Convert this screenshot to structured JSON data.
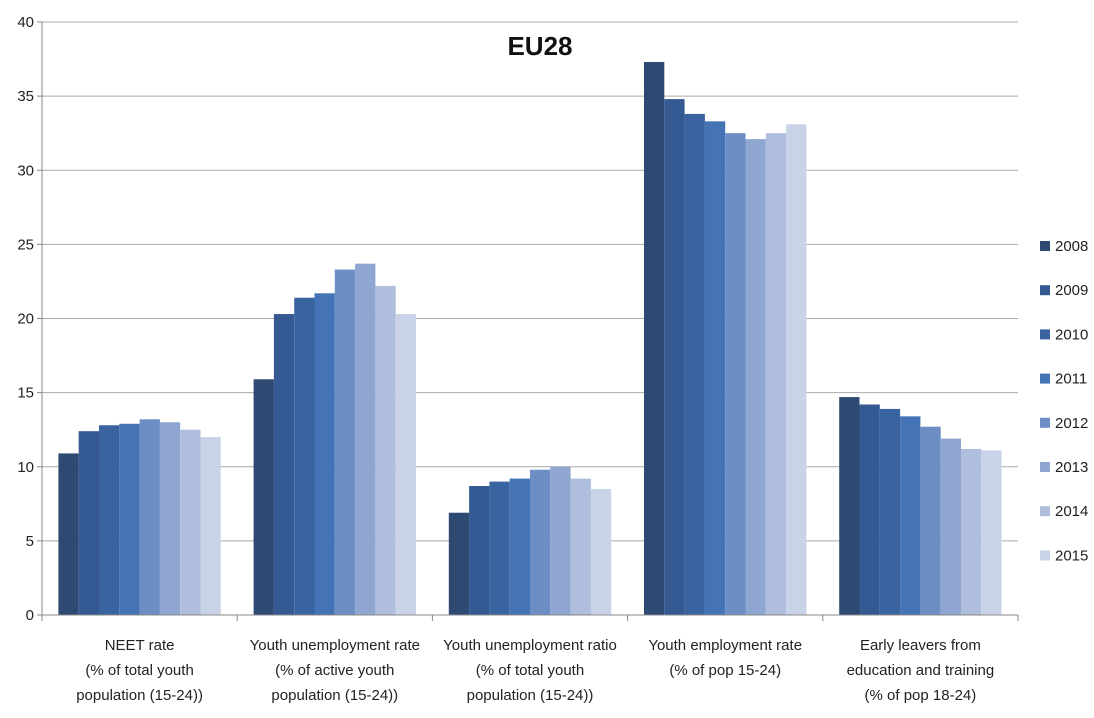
{
  "chart_data": {
    "type": "bar",
    "title": "EU28",
    "xlabel": "",
    "ylabel": "",
    "ylim": [
      0,
      40
    ],
    "yticks": [
      0,
      5,
      10,
      15,
      20,
      25,
      30,
      35,
      40
    ],
    "grid": true,
    "legend_position": "right",
    "categories": [
      [
        "NEET rate",
        "(% of total youth",
        "population (15-24))"
      ],
      [
        "Youth unemployment rate",
        "(% of active youth",
        "population (15-24))"
      ],
      [
        "Youth unemployment ratio",
        "(% of total youth",
        "population (15-24))"
      ],
      [
        "Youth employment rate",
        "(% of pop 15-24)"
      ],
      [
        "Early leavers from",
        "education and training",
        "(% of pop 18-24)"
      ]
    ],
    "series": [
      {
        "name": "2008",
        "color": "#2E4A73",
        "values": [
          10.9,
          15.9,
          6.9,
          37.3,
          14.7
        ]
      },
      {
        "name": "2009",
        "color": "#355992",
        "values": [
          12.4,
          20.3,
          8.7,
          34.8,
          14.2
        ]
      },
      {
        "name": "2010",
        "color": "#3A64A0",
        "values": [
          12.8,
          21.4,
          9.0,
          33.8,
          13.9
        ]
      },
      {
        "name": "2011",
        "color": "#4474B5",
        "values": [
          12.9,
          21.7,
          9.2,
          33.3,
          13.4
        ]
      },
      {
        "name": "2012",
        "color": "#6C8EC4",
        "values": [
          13.2,
          23.3,
          9.8,
          32.5,
          12.7
        ]
      },
      {
        "name": "2013",
        "color": "#8FA7D0",
        "values": [
          13.0,
          23.7,
          10.0,
          32.1,
          11.9
        ]
      },
      {
        "name": "2014",
        "color": "#AEBEDC",
        "values": [
          12.5,
          22.2,
          9.2,
          32.5,
          11.2
        ]
      },
      {
        "name": "2015",
        "color": "#C8D3E7",
        "values": [
          12.0,
          20.3,
          8.5,
          33.1,
          11.1
        ]
      }
    ]
  }
}
